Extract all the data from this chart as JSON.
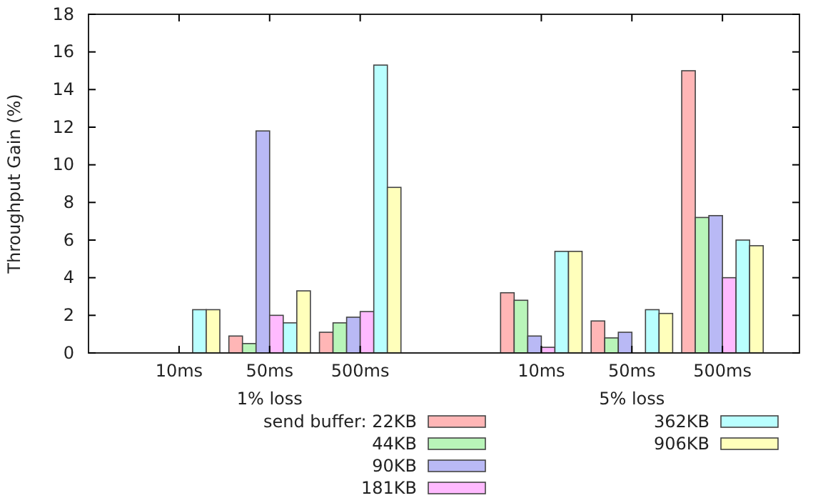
{
  "chart_data": {
    "type": "bar",
    "ylabel": "Throughput Gain (%)",
    "legend_title": "send buffer:",
    "legend": "bottom",
    "categories": [
      "10ms",
      "50ms",
      "500ms",
      null,
      "10ms",
      "50ms",
      "500ms"
    ],
    "annotations": [
      "1% loss",
      "5% loss"
    ],
    "ylim": [
      0,
      18
    ],
    "yticks": [
      0,
      2,
      4,
      6,
      8,
      10,
      12,
      14,
      16,
      18
    ],
    "series": [
      {
        "name": "22KB",
        "color": "#ffb6b6",
        "values": [
          0,
          0.9,
          1.1,
          null,
          3.2,
          1.7,
          15.0
        ]
      },
      {
        "name": "44KB",
        "color": "#b9f5b9",
        "values": [
          0,
          0.5,
          1.6,
          null,
          2.8,
          0.8,
          7.2
        ]
      },
      {
        "name": "90KB",
        "color": "#b9b9f5",
        "values": [
          0,
          11.8,
          1.9,
          null,
          0.9,
          1.1,
          7.3
        ]
      },
      {
        "name": "181KB",
        "color": "#ffbaff",
        "values": [
          0,
          2.0,
          2.2,
          null,
          0.3,
          0,
          4.0
        ]
      },
      {
        "name": "362KB",
        "color": "#b9ffff",
        "values": [
          2.3,
          1.6,
          15.3,
          null,
          5.4,
          2.3,
          6.0
        ]
      },
      {
        "name": "906KB",
        "color": "#ffffbb",
        "values": [
          2.3,
          3.3,
          8.8,
          null,
          5.4,
          2.1,
          5.7
        ]
      }
    ]
  }
}
